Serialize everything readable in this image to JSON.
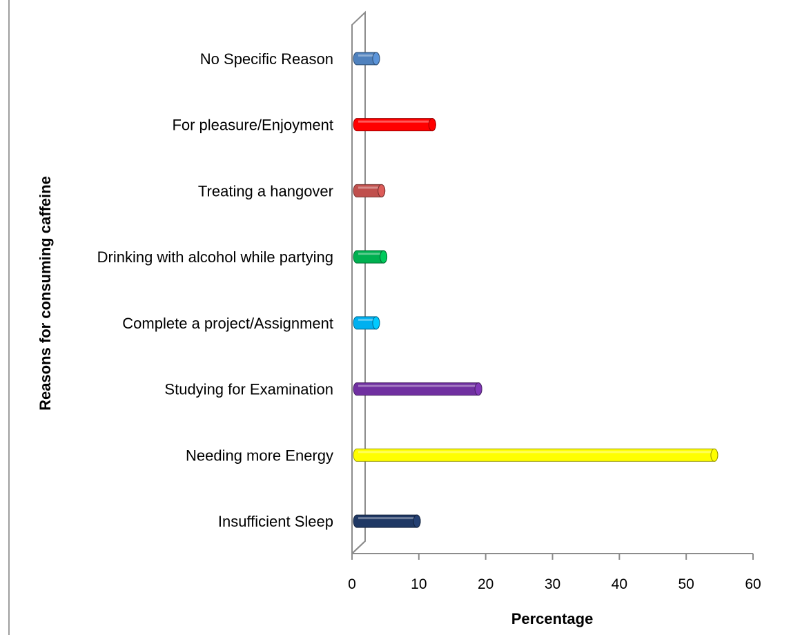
{
  "chart_data": {
    "type": "bar",
    "orientation": "horizontal",
    "title": "",
    "xlabel": "Percentage",
    "ylabel": "Reasons for consuming caffeine",
    "xlim": [
      0,
      60
    ],
    "x_ticks": [
      "0",
      "10",
      "20",
      "30",
      "40",
      "50",
      "60"
    ],
    "grid": false,
    "legend": "none",
    "categories": [
      "Insufficient Sleep",
      "Needing more Energy",
      "Studying for Examination",
      "Complete a project/Assignment",
      "Drinking with alcohol while partying",
      "Treating a hangover",
      "For pleasure/Enjoyment",
      "No Specific Reason"
    ],
    "values": [
      9.5,
      54.0,
      18.7,
      3.4,
      4.5,
      4.2,
      11.8,
      3.4
    ],
    "colors": [
      "#1f3864",
      "#ffff00",
      "#7030a0",
      "#00b0f0",
      "#00b050",
      "#c0504d",
      "#ff0000",
      "#4f81bd"
    ]
  }
}
